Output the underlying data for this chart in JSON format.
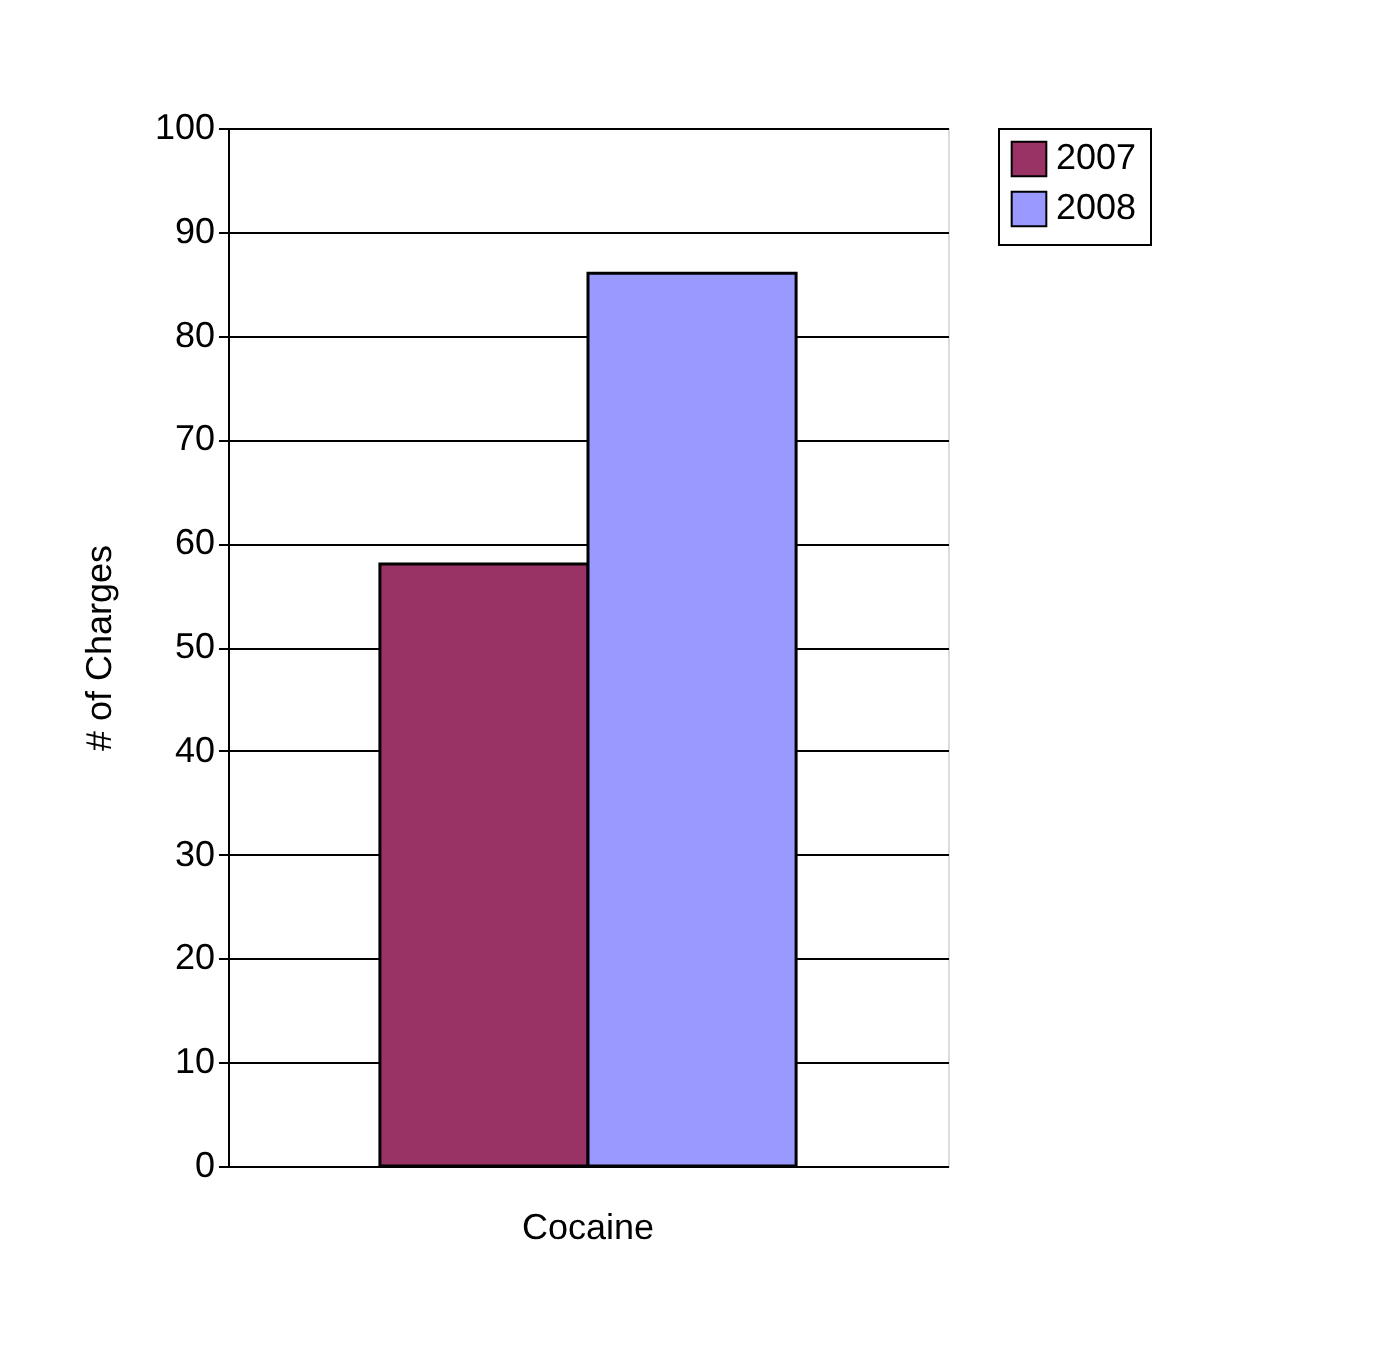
{
  "chart_data": {
    "type": "bar",
    "categories": [
      "Cocaine"
    ],
    "series": [
      {
        "name": "2007",
        "color": "#993366",
        "values": [
          58
        ]
      },
      {
        "name": "2008",
        "color": "#9999ff",
        "values": [
          86
        ]
      }
    ],
    "ylabel": "# of Charges",
    "ylim": [
      0,
      100
    ],
    "yticks": [
      0,
      10,
      20,
      30,
      40,
      50,
      60,
      70,
      80,
      90,
      100
    ],
    "grid": "y",
    "legend": "right"
  }
}
